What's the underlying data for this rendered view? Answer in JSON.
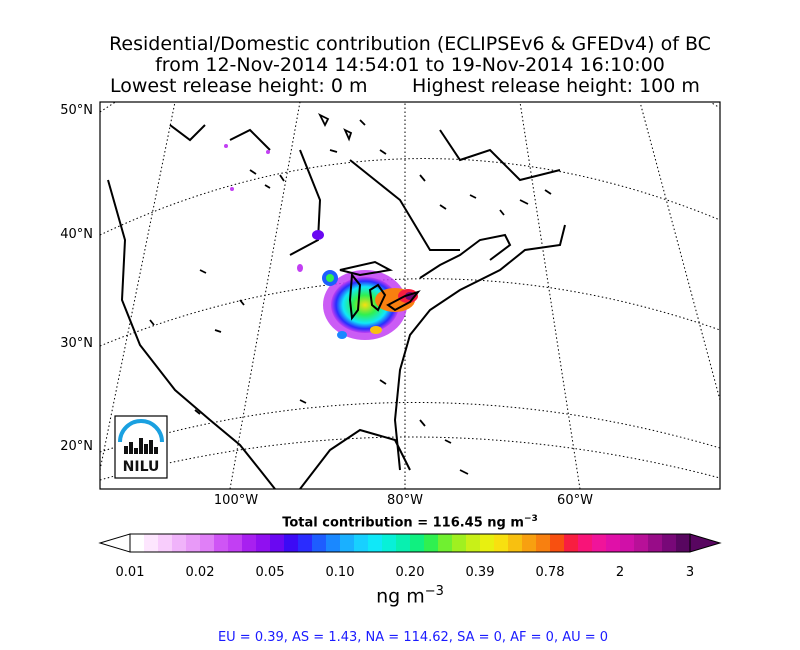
{
  "title": {
    "line1": "Residential/Domestic contribution (ECLIPSEv6 & GFEDv4) of BC",
    "line2": "from 12-Nov-2014 14:54:01 to 19-Nov-2014 16:10:00",
    "line3_left": "Lowest release height: 0 m",
    "line3_right": "Highest release height: 100 m"
  },
  "map": {
    "lat_labels": [
      "50°N",
      "40°N",
      "30°N",
      "20°N"
    ],
    "lon_labels": [
      "100°W",
      "80°W",
      "60°W"
    ],
    "logo_text": "NILU"
  },
  "total_label": "Total contribution = 116.45 ng m",
  "total_exp": "−3",
  "colorbar": {
    "ticks": [
      "0.01",
      "0.02",
      "0.05",
      "0.10",
      "0.20",
      "0.39",
      "0.78",
      "2",
      "3"
    ],
    "colors": [
      "#ffffff",
      "#fde6fe",
      "#f8cdfc",
      "#f0b3fa",
      "#e89af8",
      "#e07ff7",
      "#cf55f5",
      "#c23ff3",
      "#a820f0",
      "#9010f0",
      "#6a08f2",
      "#3c0af5",
      "#2a2cff",
      "#1e5dff",
      "#1a88ff",
      "#1ab0ff",
      "#18d0ff",
      "#10e8f8",
      "#08f0d8",
      "#08f0b0",
      "#10f080",
      "#30f050",
      "#70f030",
      "#a0f020",
      "#c8f018",
      "#e8f010",
      "#f8e010",
      "#f8c010",
      "#f8a010",
      "#f88010",
      "#f85010",
      "#f81e40",
      "#f81478",
      "#f0149a",
      "#e010a8",
      "#d010a8",
      "#b81098",
      "#980c88",
      "#780878",
      "#580660"
    ],
    "unit": "ng m",
    "unit_exp": "−3"
  },
  "footer": "EU = 0.39,  AS = 1.43,  NA = 114.62,  SA = 0,  AF = 0,  AU = 0"
}
